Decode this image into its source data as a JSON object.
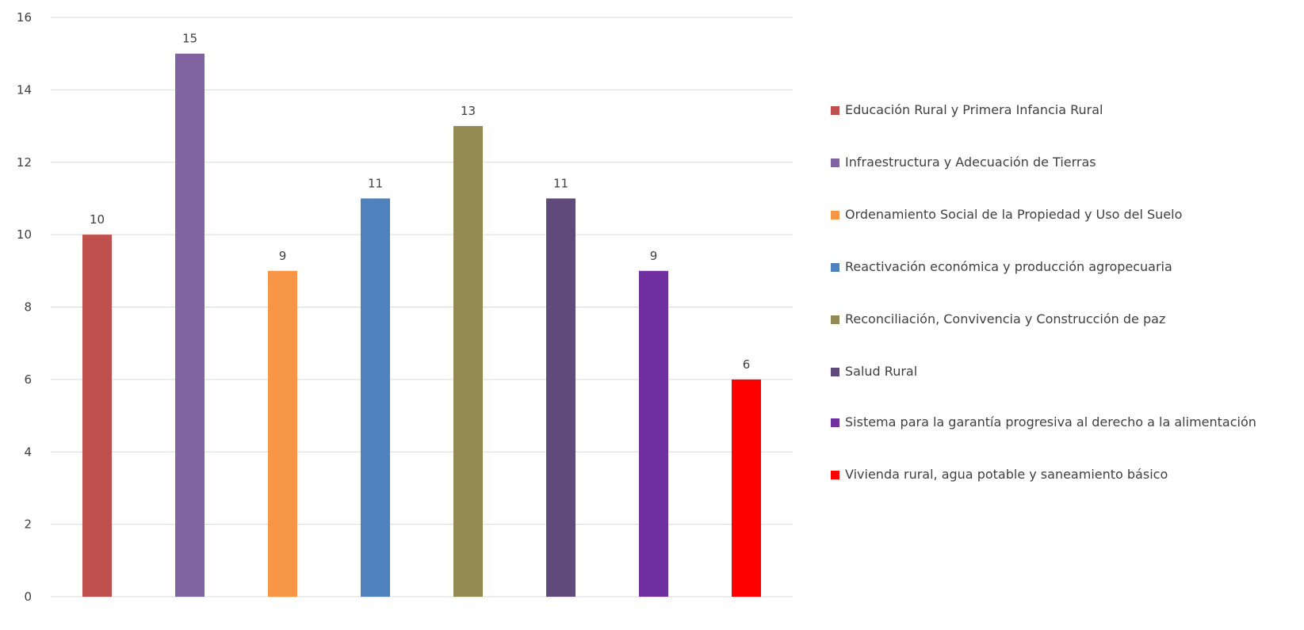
{
  "chart_data": {
    "type": "bar",
    "title": "",
    "xlabel": "",
    "ylabel": "",
    "ylim": [
      0,
      16
    ],
    "yticks": [
      0,
      2,
      4,
      6,
      8,
      10,
      12,
      14,
      16
    ],
    "grid": true,
    "legend_position": "right",
    "data_labels": true,
    "categories": [
      "Educación Rural y Primera Infancia Rural",
      "Infraestructura y Adecuación de Tierras",
      "Ordenamiento Social de la Propiedad y Uso del Suelo",
      "Reactivación económica y producción agropecuaria",
      "Reconciliación, Convivencia y Construcción de paz",
      "Salud Rural",
      "Sistema para la garantía progresiva al derecho a la alimentación",
      "Vivienda rural, agua potable y saneamiento básico"
    ],
    "values": [
      10,
      15,
      9,
      11,
      13,
      11,
      9,
      6
    ],
    "colors": [
      "#c0504d",
      "#8064a2",
      "#f79646",
      "#4f81bd",
      "#948a54",
      "#604a7b",
      "#7030a0",
      "#ff0000"
    ]
  }
}
